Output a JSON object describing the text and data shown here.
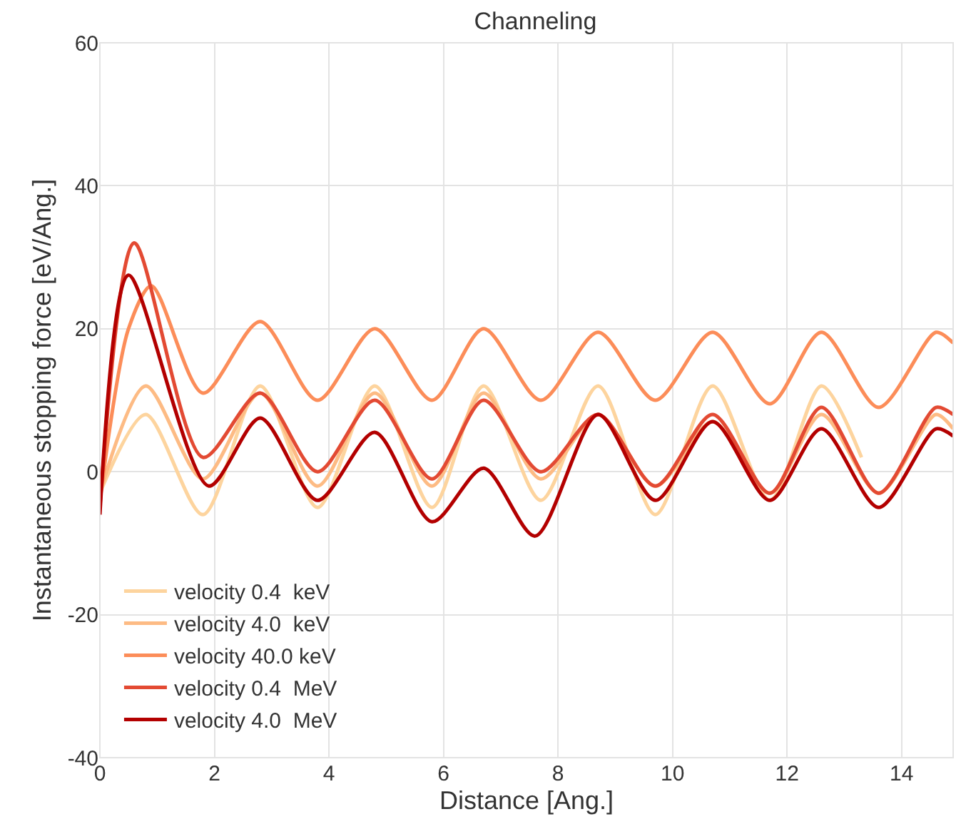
{
  "chart_data": {
    "type": "line",
    "title": "Channeling",
    "xlabel": "Distance [Ang.]",
    "ylabel": "Instantaneous stopping force [eV/Ang.]",
    "xlim": [
      0,
      14.9
    ],
    "xticks": [
      0,
      2,
      4,
      6,
      8,
      10,
      12,
      14
    ],
    "ylim": [
      -40,
      60
    ],
    "yticks": [
      -40,
      -20,
      0,
      20,
      40,
      60
    ],
    "grid": true,
    "legend": "bottom left",
    "line_style": "solid",
    "marker": "none",
    "series": [
      {
        "name": "velocity 0.4  keV",
        "color": "#fdd49e",
        "x": [
          0,
          0.8,
          1.8,
          2.8,
          3.8,
          4.8,
          5.8,
          6.7,
          7.7,
          8.7,
          9.7,
          10.7,
          11.7,
          12.6,
          13.3
        ],
        "values": [
          -3,
          8,
          -6,
          12,
          -5,
          12,
          -5,
          12,
          -4,
          12,
          -6,
          12,
          -4,
          12,
          2
        ]
      },
      {
        "name": "velocity 4.0  keV",
        "color": "#fdbb84",
        "x": [
          0,
          0.8,
          1.8,
          2.8,
          3.8,
          4.8,
          5.8,
          6.7,
          7.7,
          8.7,
          9.7,
          10.7,
          11.7,
          12.6,
          13.6,
          14.6,
          14.9
        ],
        "values": [
          -3,
          12,
          -1,
          11,
          -2,
          11,
          -2,
          11,
          -1,
          8,
          -2,
          7,
          -3,
          8,
          -3,
          8,
          6
        ]
      },
      {
        "name": "velocity 40.0 keV",
        "color": "#fc8d59",
        "x": [
          0,
          0.5,
          0.9,
          1.8,
          2.8,
          3.8,
          4.8,
          5.8,
          6.7,
          7.7,
          8.7,
          9.7,
          10.7,
          11.7,
          12.6,
          13.6,
          14.6,
          14.9
        ],
        "values": [
          -4,
          20,
          26,
          11,
          21,
          10,
          20,
          10,
          20,
          10,
          19.5,
          10,
          19.5,
          9.5,
          19.5,
          9,
          19.5,
          18
        ]
      },
      {
        "name": "velocity 0.4  MeV",
        "color": "#e34a33",
        "x": [
          0,
          0.6,
          1.8,
          2.8,
          3.8,
          4.8,
          5.8,
          6.7,
          7.7,
          8.7,
          9.7,
          10.7,
          11.7,
          12.6,
          13.6,
          14.6,
          14.9
        ],
        "values": [
          -5,
          32,
          2,
          11,
          0,
          10,
          -1,
          10,
          0,
          8,
          -2,
          8,
          -3,
          9,
          -3,
          9,
          8
        ]
      },
      {
        "name": "velocity 4.0  MeV",
        "color": "#b30000",
        "x": [
          0,
          0.5,
          1.9,
          2.8,
          3.8,
          4.8,
          5.8,
          6.7,
          7.6,
          8.7,
          9.7,
          10.7,
          11.7,
          12.6,
          13.6,
          14.6,
          14.9
        ],
        "values": [
          -6,
          27.5,
          -2,
          7.5,
          -4,
          5.5,
          -7,
          0.5,
          -9,
          8,
          -4,
          7,
          -4,
          6,
          -5,
          6,
          5
        ]
      }
    ]
  }
}
